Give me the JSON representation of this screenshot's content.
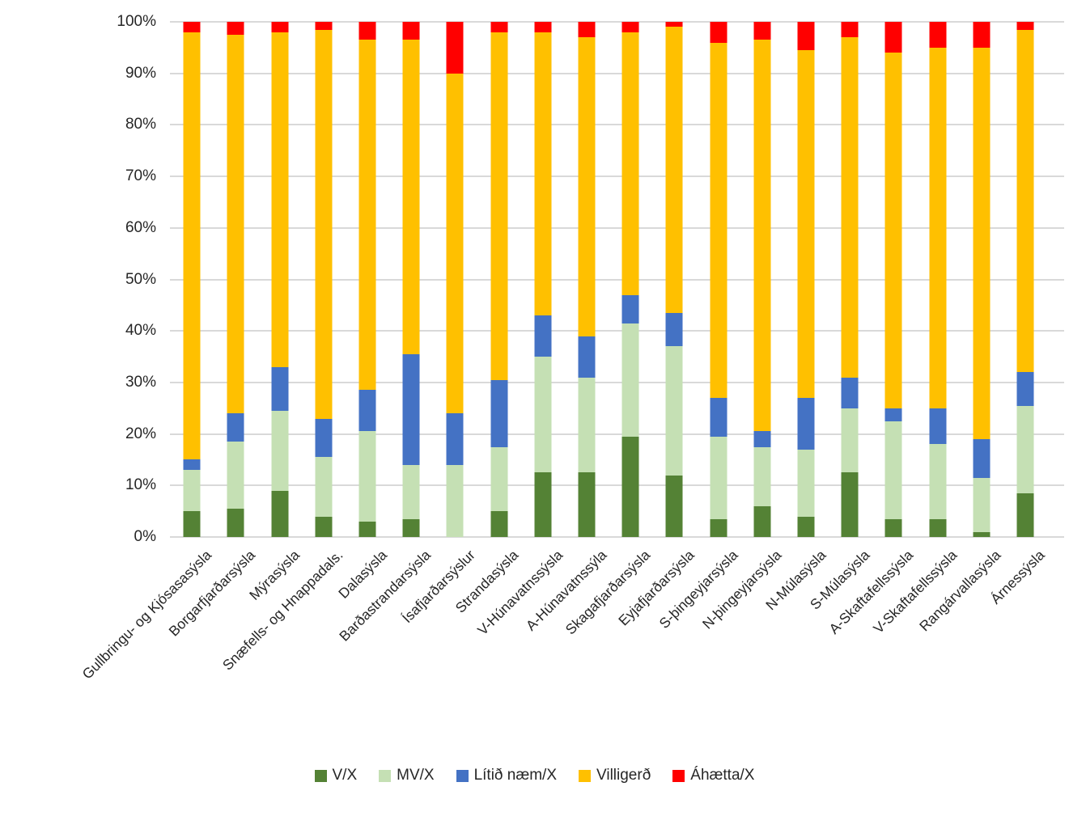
{
  "chart_data": {
    "type": "bar",
    "subtype": "stacked-100-percent",
    "title": "",
    "xlabel": "",
    "ylabel": "",
    "ylim": [
      0,
      100
    ],
    "grid": true,
    "legend_position": "bottom",
    "yticks": [
      "0%",
      "10%",
      "20%",
      "30%",
      "40%",
      "50%",
      "60%",
      "70%",
      "80%",
      "90%",
      "100%"
    ],
    "categories": [
      "Gullbringu- og Kjósasasýsla",
      "Borgarfjarðarsýsla",
      "Mýrasýsla",
      "Snæfells- og Hnappadals.",
      "Dalasýsla",
      "Barðastrandarsýsla",
      "Ísafjarðarsýslur",
      "Strandasýsla",
      "V-Húnavatnssýsla",
      "A-Húnavatnssýla",
      "Skagafjarðarsýsla",
      "Eyjafjarðarsýsla",
      "S-þingeyjarsýsla",
      "N-þingeyjarsýsla",
      "N-Múlasýsla",
      "S-Múlasýsla",
      "A-Skaftafellssýsla",
      "V-Skaftafellssýsla",
      "Rangárvallasýsla",
      "Árnessýsla"
    ],
    "series": [
      {
        "name": "V/X",
        "color": "#548235",
        "values": [
          5,
          5.5,
          9,
          4,
          3,
          3.5,
          0,
          5,
          12.5,
          12.5,
          19.5,
          12,
          3.5,
          6,
          4,
          12.5,
          3.5,
          3.5,
          1,
          8.5
        ]
      },
      {
        "name": "MV/X",
        "color": "#C5E0B4",
        "values": [
          8,
          13,
          15.5,
          11.5,
          17.5,
          10.5,
          14,
          12.5,
          22.5,
          18.5,
          22,
          25,
          16,
          11.5,
          13,
          12.5,
          19,
          14.5,
          10.5,
          17
        ]
      },
      {
        "name": "Lítið næm/X",
        "color": "#4472C4",
        "values": [
          2,
          5.5,
          8.5,
          7.5,
          8,
          21.5,
          10,
          13,
          8,
          8,
          5.5,
          6.5,
          7.5,
          3,
          10,
          6,
          2.5,
          7,
          7.5,
          6.5
        ]
      },
      {
        "name": "Villigerð",
        "color": "#FFC000",
        "values": [
          83,
          73.5,
          65,
          75.5,
          68,
          61,
          66,
          67.5,
          55,
          58,
          51,
          55.5,
          69,
          76,
          67.5,
          66,
          69,
          70,
          76,
          66.5
        ]
      },
      {
        "name": "Áhætta/X",
        "color": "#FF0000",
        "values": [
          2,
          2.5,
          2,
          1.5,
          3.5,
          3.5,
          10,
          2,
          2,
          3,
          2,
          1,
          4,
          3.5,
          5.5,
          3,
          6,
          5,
          5,
          1.5
        ]
      }
    ],
    "colors": {
      "gridline": "#D9D9D9",
      "axis_text": "#262626",
      "background": "#FFFFFF"
    }
  }
}
